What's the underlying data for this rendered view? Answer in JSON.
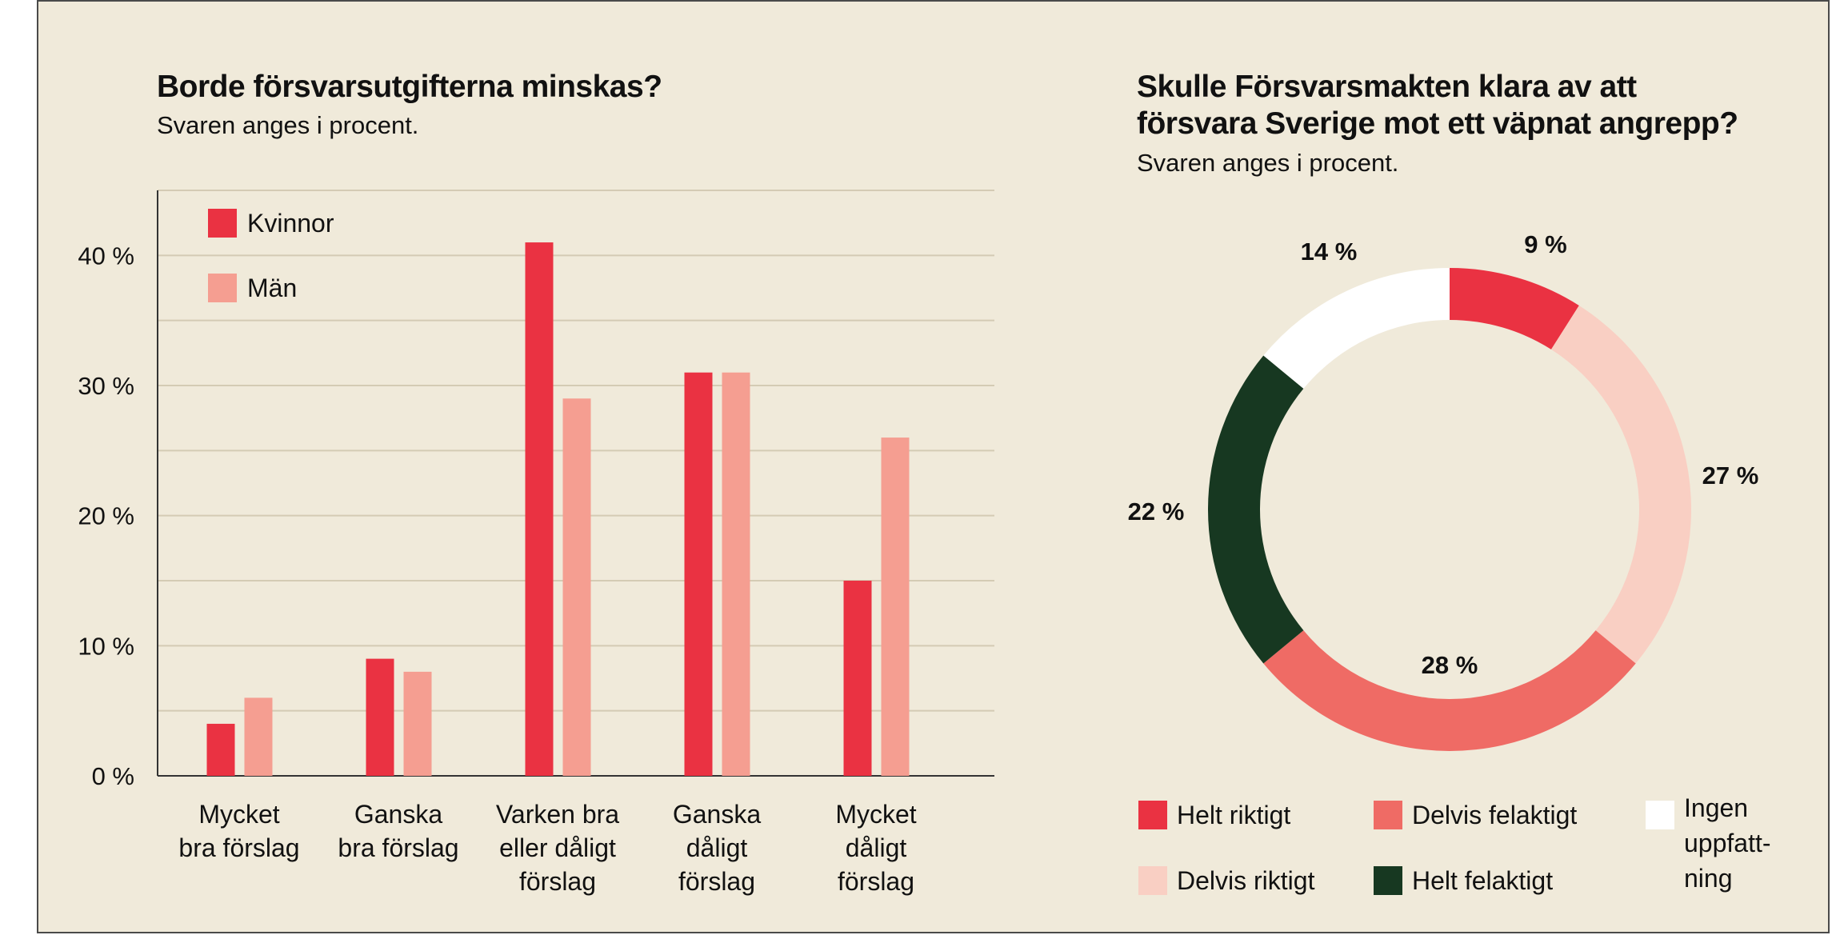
{
  "colors": {
    "background": "#f0eada",
    "kvinnor": "#ea3242",
    "man": "#f59e91",
    "helt_riktigt": "#ea3242",
    "delvis_riktigt": "#f9cfc3",
    "delvis_felaktigt": "#ef6b65",
    "helt_felaktigt": "#173821",
    "ingen_uppfattning": "#ffffff",
    "gridline": "#d4cbb4",
    "axis": "#333333"
  },
  "chart_data": [
    {
      "type": "bar",
      "title": "Borde försvarsutgifterna minskas?",
      "subtitle": "Svaren anges i procent.",
      "categories": [
        [
          "Mycket",
          "bra förslag"
        ],
        [
          "Ganska",
          "bra förslag"
        ],
        [
          "Varken bra",
          "eller dåligt",
          "förslag"
        ],
        [
          "Ganska",
          "dåligt",
          "förslag"
        ],
        [
          "Mycket",
          "dåligt",
          "förslag"
        ]
      ],
      "series": [
        {
          "name": "Kvinnor",
          "values": [
            4,
            9,
            41,
            31,
            15
          ]
        },
        {
          "name": "Män",
          "values": [
            6,
            8,
            29,
            31,
            26
          ]
        }
      ],
      "ylim": [
        0,
        45
      ],
      "yticks": [
        0,
        10,
        20,
        30,
        40
      ],
      "ytick_labels": [
        "0 %",
        "10 %",
        "20 %",
        "30 %",
        "40 %"
      ],
      "grid": true,
      "legend_position": "top-left"
    },
    {
      "type": "pie",
      "donut": true,
      "title_lines": [
        "Skulle Försvarsmakten klara av att",
        "försvara Sverige mot ett väpnat angrepp?"
      ],
      "subtitle": "Svaren anges i procent.",
      "slices": [
        {
          "label": "Helt riktigt",
          "value": 9,
          "value_label": "9 %"
        },
        {
          "label": "Delvis riktigt",
          "value": 27,
          "value_label": "27 %"
        },
        {
          "label": "Delvis felaktigt",
          "value": 28,
          "value_label": "28 %"
        },
        {
          "label": "Helt felaktigt",
          "value": 22,
          "value_label": "22 %"
        },
        {
          "label": "Ingen uppfattning",
          "value": 14,
          "value_label": "14 %"
        }
      ],
      "legend": [
        {
          "lines": [
            "Helt riktigt"
          ]
        },
        {
          "lines": [
            "Delvis riktigt"
          ]
        },
        {
          "lines": [
            "Delvis felaktigt"
          ]
        },
        {
          "lines": [
            "Helt felaktigt"
          ]
        },
        {
          "lines": [
            "Ingen",
            "uppfatt-",
            "ning"
          ]
        }
      ],
      "legend_position": "bottom"
    }
  ]
}
